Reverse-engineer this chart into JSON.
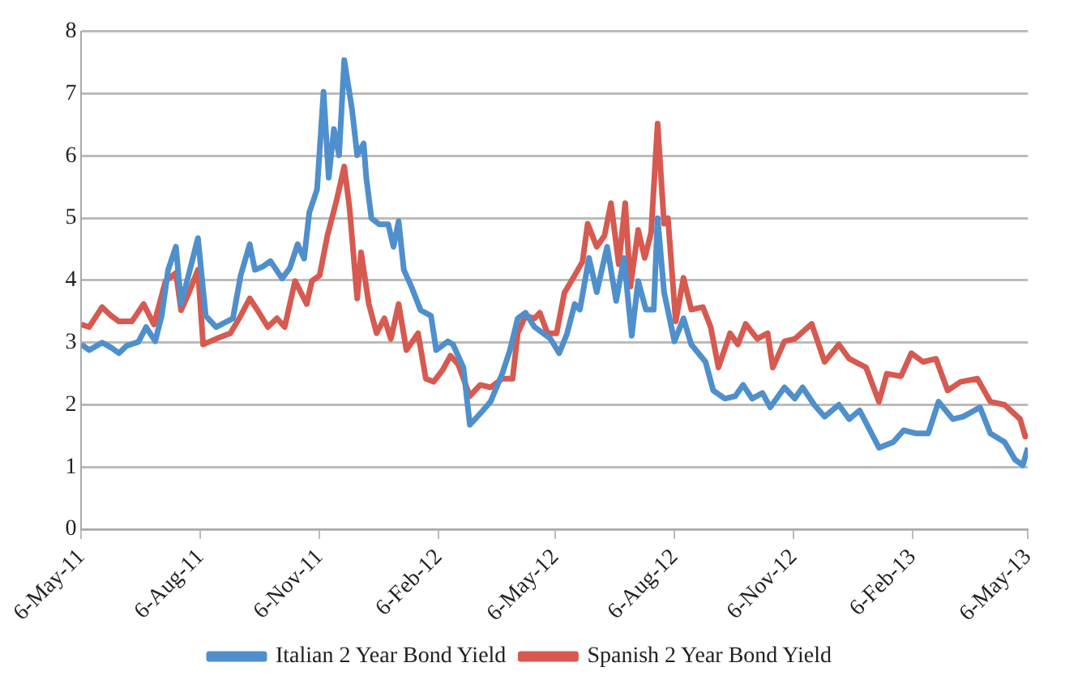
{
  "chart_data": {
    "type": "line",
    "xlim": [
      "2011-05-06",
      "2013-05-06"
    ],
    "xticks": [
      {
        "value": "2011-05-06",
        "label": "6-May-11"
      },
      {
        "value": "2011-08-06",
        "label": "6-Aug-11"
      },
      {
        "value": "2011-11-06",
        "label": "6-Nov-11"
      },
      {
        "value": "2012-02-06",
        "label": "6-Feb-12"
      },
      {
        "value": "2012-05-06",
        "label": "6-May-12"
      },
      {
        "value": "2012-08-06",
        "label": "6-Aug-12"
      },
      {
        "value": "2012-11-06",
        "label": "6-Nov-12"
      },
      {
        "value": "2013-02-06",
        "label": "6-Feb-13"
      },
      {
        "value": "2013-05-06",
        "label": "6-May-13"
      }
    ],
    "ylim": [
      0,
      8
    ],
    "yticks": [
      0,
      1,
      2,
      3,
      4,
      5,
      6,
      7,
      8
    ],
    "grid": "y",
    "legend": "bottom",
    "marker": "none",
    "line_style": "solid",
    "series": [
      {
        "name": "Italian 2 Year Bond Yield",
        "color": "#4f8fcc",
        "x": [
          "2011-05-06",
          "2011-05-12",
          "2011-05-22",
          "2011-05-29",
          "2011-06-04",
          "2011-06-10",
          "2011-06-19",
          "2011-06-25",
          "2011-07-02",
          "2011-07-07",
          "2011-07-12",
          "2011-07-18",
          "2011-07-22",
          "2011-07-31",
          "2011-08-04",
          "2011-08-10",
          "2011-08-18",
          "2011-08-31",
          "2011-09-06",
          "2011-09-13",
          "2011-09-17",
          "2011-09-23",
          "2011-09-29",
          "2011-10-08",
          "2011-10-14",
          "2011-10-20",
          "2011-10-25",
          "2011-10-29",
          "2011-11-04",
          "2011-11-09",
          "2011-11-13",
          "2011-11-17",
          "2011-11-21",
          "2011-11-25",
          "2011-12-01",
          "2011-12-05",
          "2011-12-10",
          "2011-12-12",
          "2011-12-16",
          "2011-12-22",
          "2011-12-29",
          "2012-01-02",
          "2012-01-06",
          "2012-01-10",
          "2012-01-16",
          "2012-01-23",
          "2012-01-31",
          "2012-02-04",
          "2012-02-13",
          "2012-02-17",
          "2012-02-25",
          "2012-03-01",
          "2012-03-09",
          "2012-03-17",
          "2012-03-26",
          "2012-04-01",
          "2012-04-07",
          "2012-04-13",
          "2012-04-20",
          "2012-04-30",
          "2012-05-02",
          "2012-05-09",
          "2012-05-15",
          "2012-05-21",
          "2012-05-25",
          "2012-06-01",
          "2012-06-07",
          "2012-06-15",
          "2012-06-22",
          "2012-06-28",
          "2012-07-04",
          "2012-07-09",
          "2012-07-15",
          "2012-07-21",
          "2012-07-24",
          "2012-07-29",
          "2012-08-06",
          "2012-08-13",
          "2012-08-19",
          "2012-08-30",
          "2012-09-05",
          "2012-09-14",
          "2012-09-22",
          "2012-09-28",
          "2012-10-05",
          "2012-10-13",
          "2012-10-19",
          "2012-10-30",
          "2012-11-07",
          "2012-11-13",
          "2012-11-22",
          "2012-11-30",
          "2012-12-11",
          "2012-12-19",
          "2012-12-27",
          "2013-01-11",
          "2013-01-22",
          "2013-01-30",
          "2013-02-09",
          "2013-02-18",
          "2013-02-26",
          "2013-03-09",
          "2013-03-17",
          "2013-03-30",
          "2013-04-07",
          "2013-04-18",
          "2013-04-26",
          "2013-05-02",
          "2013-05-06"
        ],
        "values": [
          2.97,
          2.88,
          3.0,
          2.92,
          2.83,
          2.95,
          3.01,
          3.25,
          3.02,
          3.43,
          4.17,
          4.54,
          3.62,
          4.35,
          4.68,
          3.43,
          3.25,
          3.39,
          4.08,
          4.58,
          4.17,
          4.22,
          4.31,
          4.03,
          4.2,
          4.58,
          4.35,
          5.09,
          5.46,
          7.03,
          5.65,
          6.43,
          6.01,
          7.54,
          6.75,
          6.01,
          6.2,
          5.65,
          5.0,
          4.9,
          4.9,
          4.54,
          4.95,
          4.17,
          3.89,
          3.52,
          3.43,
          2.88,
          3.02,
          2.97,
          2.6,
          1.68,
          1.86,
          2.05,
          2.5,
          2.88,
          3.39,
          3.48,
          3.25,
          3.1,
          3.07,
          2.83,
          3.14,
          3.62,
          3.53,
          4.36,
          3.81,
          4.54,
          3.67,
          4.36,
          3.11,
          3.99,
          3.53,
          3.53,
          5.0,
          3.81,
          3.02,
          3.39,
          2.97,
          2.69,
          2.23,
          2.1,
          2.14,
          2.32,
          2.1,
          2.19,
          1.96,
          2.28,
          2.1,
          2.28,
          2.0,
          1.81,
          2.0,
          1.77,
          1.91,
          1.31,
          1.4,
          1.59,
          1.54,
          1.54,
          2.05,
          1.77,
          1.81,
          1.96,
          1.54,
          1.4,
          1.12,
          1.03,
          1.31
        ]
      },
      {
        "name": "Spanish 2 Year Bond Yield",
        "color": "#d65a50",
        "x": [
          "2011-05-06",
          "2011-05-12",
          "2011-05-22",
          "2011-05-29",
          "2011-06-04",
          "2011-06-14",
          "2011-06-23",
          "2011-07-01",
          "2011-07-10",
          "2011-07-18",
          "2011-07-22",
          "2011-07-28",
          "2011-08-04",
          "2011-08-08",
          "2011-08-18",
          "2011-08-29",
          "2011-09-06",
          "2011-09-13",
          "2011-09-19",
          "2011-09-27",
          "2011-10-04",
          "2011-10-10",
          "2011-10-18",
          "2011-10-27",
          "2011-10-31",
          "2011-11-06",
          "2011-11-12",
          "2011-11-19",
          "2011-11-25",
          "2011-11-29",
          "2011-12-05",
          "2011-12-08",
          "2011-12-14",
          "2011-12-20",
          "2011-12-26",
          "2011-12-31",
          "2012-01-06",
          "2012-01-12",
          "2012-01-21",
          "2012-01-27",
          "2012-02-02",
          "2012-02-09",
          "2012-02-15",
          "2012-02-21",
          "2012-03-01",
          "2012-03-09",
          "2012-03-17",
          "2012-03-26",
          "2012-04-03",
          "2012-04-07",
          "2012-04-13",
          "2012-04-20",
          "2012-04-24",
          "2012-04-30",
          "2012-05-07",
          "2012-05-13",
          "2012-05-21",
          "2012-05-27",
          "2012-05-31",
          "2012-06-07",
          "2012-06-13",
          "2012-06-18",
          "2012-06-24",
          "2012-06-29",
          "2012-07-03",
          "2012-07-09",
          "2012-07-14",
          "2012-07-19",
          "2012-07-24",
          "2012-07-29",
          "2012-08-01",
          "2012-08-07",
          "2012-08-13",
          "2012-08-19",
          "2012-08-28",
          "2012-09-03",
          "2012-09-09",
          "2012-09-18",
          "2012-09-24",
          "2012-09-30",
          "2012-10-09",
          "2012-10-17",
          "2012-10-21",
          "2012-10-30",
          "2012-11-07",
          "2012-11-20",
          "2012-11-30",
          "2012-12-11",
          "2012-12-19",
          "2013-01-01",
          "2013-01-11",
          "2013-01-17",
          "2013-01-28",
          "2013-02-05",
          "2013-02-14",
          "2013-02-24",
          "2013-03-05",
          "2013-03-15",
          "2013-03-28",
          "2013-04-07",
          "2013-04-18",
          "2013-04-30",
          "2013-05-04",
          "2013-05-06"
        ],
        "values": [
          3.29,
          3.25,
          3.57,
          3.43,
          3.34,
          3.34,
          3.62,
          3.29,
          3.99,
          4.12,
          3.52,
          3.8,
          4.17,
          2.97,
          3.06,
          3.15,
          3.43,
          3.71,
          3.52,
          3.25,
          3.39,
          3.25,
          3.99,
          3.62,
          3.99,
          4.08,
          4.72,
          5.28,
          5.83,
          5.18,
          3.71,
          4.45,
          3.62,
          3.15,
          3.39,
          3.06,
          3.62,
          2.88,
          3.15,
          2.42,
          2.37,
          2.56,
          2.79,
          2.65,
          2.14,
          2.32,
          2.28,
          2.42,
          2.42,
          3.15,
          3.43,
          3.39,
          3.48,
          3.15,
          3.15,
          3.8,
          4.08,
          4.3,
          4.91,
          4.54,
          4.72,
          5.24,
          4.26,
          5.24,
          3.9,
          4.81,
          4.36,
          4.77,
          6.52,
          4.91,
          5.0,
          3.34,
          4.04,
          3.53,
          3.57,
          3.25,
          2.6,
          3.15,
          2.97,
          3.3,
          3.06,
          3.15,
          2.6,
          3.02,
          3.06,
          3.3,
          2.69,
          2.97,
          2.74,
          2.6,
          2.05,
          2.5,
          2.46,
          2.83,
          2.69,
          2.74,
          2.23,
          2.37,
          2.42,
          2.05,
          2.0,
          1.77,
          1.49,
          1.54
        ]
      }
    ]
  }
}
